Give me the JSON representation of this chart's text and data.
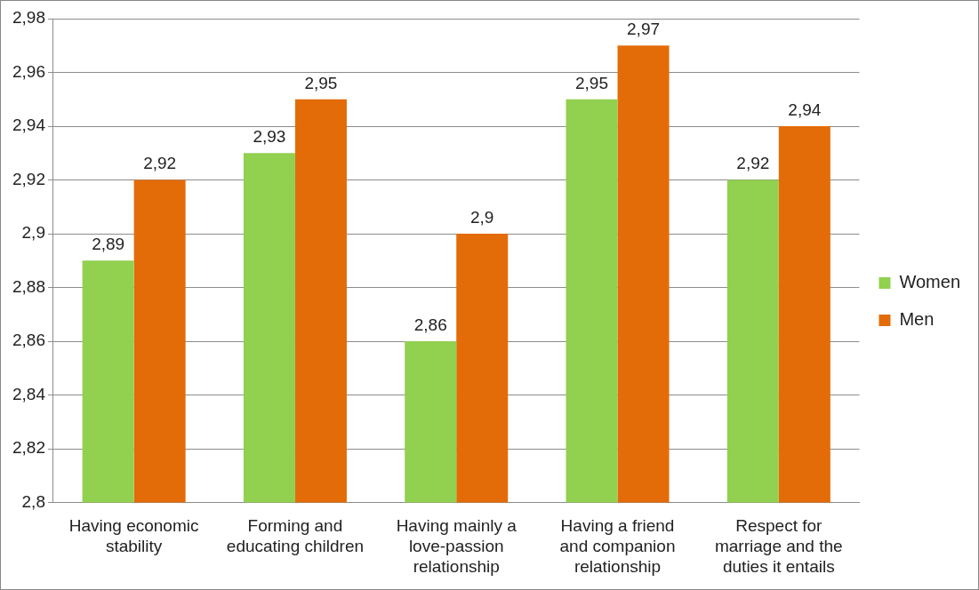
{
  "chart_data": {
    "type": "bar",
    "categories": [
      "Having economic stability",
      "Forming and educating children",
      "Having mainly a love-passion relationship",
      "Having a friend and companion relationship",
      "Respect for marriage and the duties it entails"
    ],
    "series": [
      {
        "name": "Women",
        "color": "#92d050",
        "values": [
          2.89,
          2.93,
          2.86,
          2.95,
          2.92
        ],
        "value_labels": [
          "2,89",
          "2,93",
          "2,86",
          "2,95",
          "2,92"
        ]
      },
      {
        "name": "Men",
        "color": "#e36c09",
        "values": [
          2.92,
          2.95,
          2.9,
          2.97,
          2.94
        ],
        "value_labels": [
          "2,92",
          "2,95",
          "2,9",
          "2,97",
          "2,94"
        ]
      }
    ],
    "ylim": [
      2.8,
      2.98
    ],
    "yticks": [
      {
        "value": 2.8,
        "label": "2,8"
      },
      {
        "value": 2.82,
        "label": "2,82"
      },
      {
        "value": 2.84,
        "label": "2,84"
      },
      {
        "value": 2.86,
        "label": "2,86"
      },
      {
        "value": 2.88,
        "label": "2,88"
      },
      {
        "value": 2.9,
        "label": "2,9"
      },
      {
        "value": 2.92,
        "label": "2,92"
      },
      {
        "value": 2.94,
        "label": "2,94"
      },
      {
        "value": 2.96,
        "label": "2,96"
      },
      {
        "value": 2.98,
        "label": "2,98"
      }
    ],
    "grid": "y",
    "legend": "right"
  }
}
